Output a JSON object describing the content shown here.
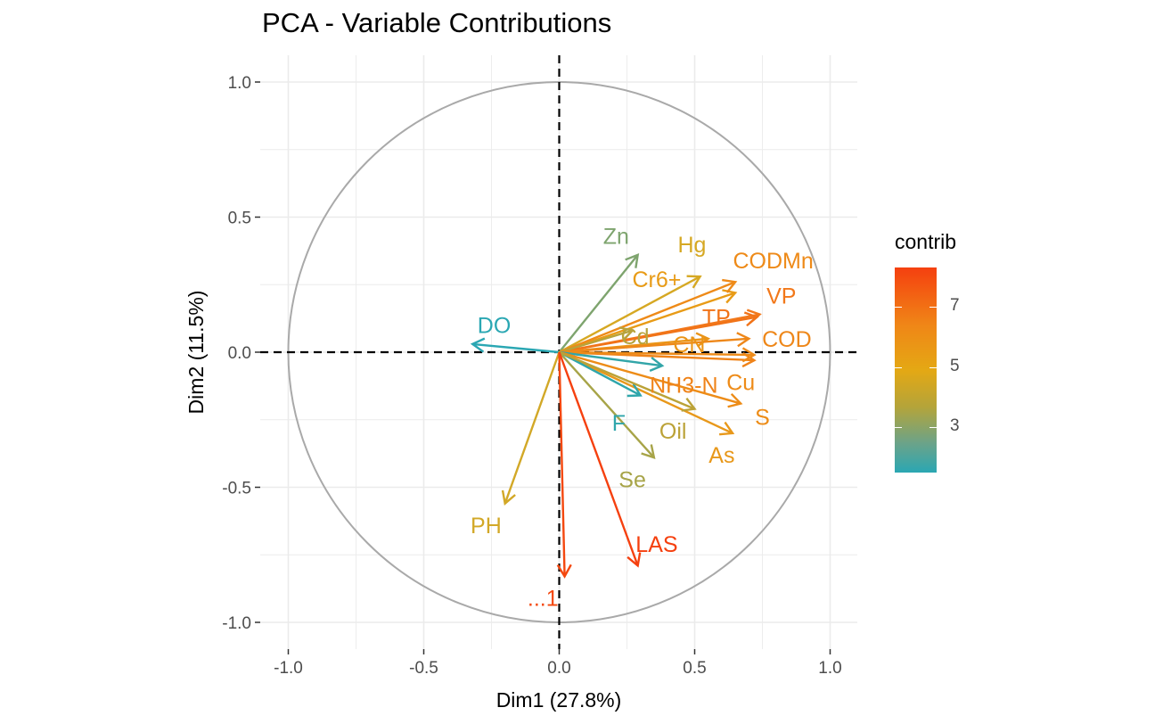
{
  "chart_data": {
    "type": "scatter",
    "title": "PCA - Variable Contributions",
    "xlabel": "Dim1 (27.8%)",
    "ylabel": "Dim2 (11.5%)",
    "xlim": [
      -1.05,
      1.1
    ],
    "ylim": [
      -1.1,
      1.1
    ],
    "xticks": [
      -1.0,
      -0.5,
      0.0,
      0.5,
      1.0
    ],
    "yticks": [
      -1.0,
      -0.5,
      0.0,
      0.5,
      1.0
    ],
    "xtick_labels": [
      "-1.0",
      "-0.5",
      "0.0",
      "0.5",
      "1.0"
    ],
    "ytick_labels": [
      "-1.0",
      "-0.5",
      "0.0",
      "0.5",
      "1.0"
    ],
    "grid": true,
    "correlation_circle": true,
    "legend": {
      "title": "contrib",
      "placement": "right",
      "ticks": [
        7,
        5,
        3
      ],
      "tick_labels": [
        "7",
        "5",
        "3"
      ],
      "range": [
        1.5,
        8.3
      ],
      "colors": [
        "#2aa7b3",
        "#6aa38a",
        "#b4a43a",
        "#e4a814",
        "#f08617",
        "#f5400f"
      ]
    },
    "variables": [
      {
        "name": "DO",
        "x": -0.32,
        "y": 0.03,
        "contrib": 2.0,
        "color": "#2aa7b3",
        "lx": -0.24,
        "ly": 0.1
      },
      {
        "name": "Zn",
        "x": 0.29,
        "y": 0.36,
        "contrib": 3.0,
        "color": "#7ea46e",
        "lx": 0.21,
        "ly": 0.43
      },
      {
        "name": "Hg",
        "x": 0.52,
        "y": 0.28,
        "contrib": 4.6,
        "color": "#d6a823",
        "lx": 0.49,
        "ly": 0.4
      },
      {
        "name": "Cr6+",
        "x": 0.65,
        "y": 0.22,
        "contrib": 5.4,
        "color": "#e89b16",
        "lx": 0.36,
        "ly": 0.27
      },
      {
        "name": "CODMn",
        "x": 0.65,
        "y": 0.26,
        "contrib": 6.5,
        "color": "#ee8a18",
        "lx": 0.79,
        "ly": 0.34
      },
      {
        "name": "VP",
        "x": 0.74,
        "y": 0.14,
        "contrib": 7.1,
        "color": "#f2781a",
        "lx": 0.82,
        "ly": 0.21
      },
      {
        "name": "TP",
        "x": 0.73,
        "y": 0.13,
        "contrib": 7.3,
        "color": "#f17318",
        "lx": 0.58,
        "ly": 0.13
      },
      {
        "name": "Cd",
        "x": 0.27,
        "y": 0.08,
        "contrib": 3.6,
        "color": "#b7a33b",
        "lx": 0.28,
        "ly": 0.06
      },
      {
        "name": "CN",
        "x": 0.55,
        "y": 0.05,
        "contrib": 5.9,
        "color": "#ea9416",
        "lx": 0.48,
        "ly": 0.03
      },
      {
        "name": "COD",
        "x": 0.7,
        "y": 0.05,
        "contrib": 6.6,
        "color": "#ee8719",
        "lx": 0.84,
        "ly": 0.05
      },
      {
        "name": "NH3-N",
        "x": 0.72,
        "y": -0.03,
        "contrib": 6.8,
        "color": "#ef8319",
        "lx": 0.46,
        "ly": -0.12
      },
      {
        "name": "Cu",
        "x": 0.72,
        "y": -0.01,
        "contrib": 6.4,
        "color": "#ee8b18",
        "lx": 0.67,
        "ly": -0.11
      },
      {
        "name": "NH3-N",
        "x": 0.38,
        "y": -0.05,
        "contrib": 2.2,
        "color": "#32a5a8",
        "lx": 0.46,
        "ly": -0.12
      },
      {
        "name": "S",
        "x": 0.67,
        "y": -0.19,
        "contrib": 6.2,
        "color": "#ed8c17",
        "lx": 0.75,
        "ly": -0.24
      },
      {
        "name": "As",
        "x": 0.64,
        "y": -0.3,
        "contrib": 5.5,
        "color": "#e8981a",
        "lx": 0.6,
        "ly": -0.38
      },
      {
        "name": "F",
        "x": 0.3,
        "y": -0.16,
        "contrib": 2.1,
        "color": "#2fa6ab",
        "lx": 0.22,
        "ly": -0.26
      },
      {
        "name": "Oil",
        "x": 0.5,
        "y": -0.21,
        "contrib": 3.8,
        "color": "#bba237",
        "lx": 0.42,
        "ly": -0.29
      },
      {
        "name": "Se",
        "x": 0.35,
        "y": -0.39,
        "contrib": 3.4,
        "color": "#a7a448",
        "lx": 0.27,
        "ly": -0.47
      },
      {
        "name": "PH",
        "x": -0.2,
        "y": -0.56,
        "contrib": 4.4,
        "color": "#d2a827",
        "lx": -0.27,
        "ly": -0.64
      },
      {
        "name": "LAS",
        "x": 0.29,
        "y": -0.79,
        "contrib": 8.3,
        "color": "#f5400f",
        "lx": 0.36,
        "ly": -0.71
      },
      {
        "name": "...1",
        "x": 0.02,
        "y": -0.83,
        "contrib": 8.0,
        "color": "#f4480f",
        "lx": -0.06,
        "ly": -0.91
      }
    ]
  }
}
